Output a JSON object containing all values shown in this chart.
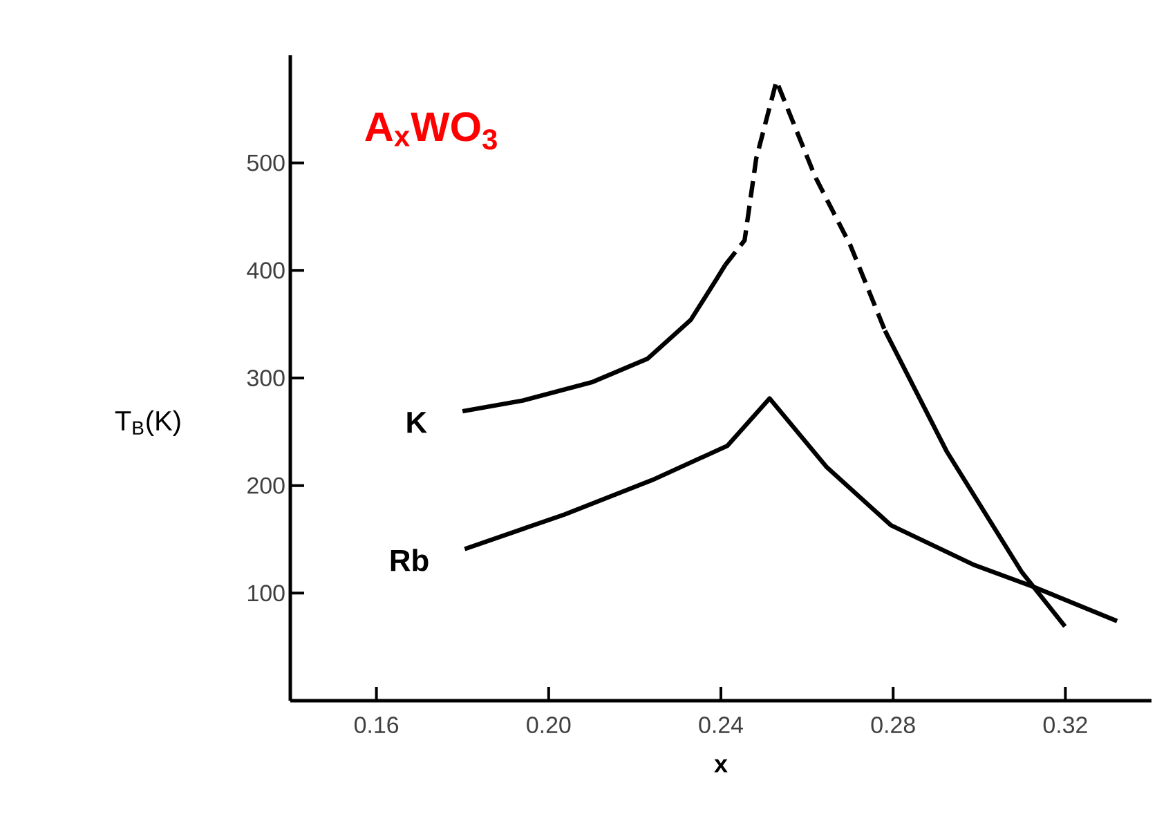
{
  "chart_data": {
    "type": "line",
    "title": "A$_{x}$WO$_{3}$",
    "xlabel": "x",
    "ylabel": "T$_{B}$(K)",
    "xlim": [
      0.14,
      0.34
    ],
    "ylim": [
      0,
      600
    ],
    "xticks": [
      0.16,
      {
        "value": 0.2,
        "label": "0.20"
      },
      0.24,
      0.28,
      0.32
    ],
    "yticks": [
      100,
      200,
      300,
      400,
      500
    ],
    "line_style": "solid",
    "marker": "none",
    "grid": false,
    "series": [
      {
        "name": "K",
        "color": "#000000",
        "x": [
          0.18,
          0.194,
          0.21,
          0.223,
          0.233,
          0.239,
          0.241
        ],
        "values": [
          269,
          279,
          296,
          318,
          354,
          392,
          405
        ]
      },
      {
        "color": "#000000",
        "line_style": "dashed",
        "x": [
          0.241,
          0.2455,
          0.2482,
          0.2529,
          0.2619,
          0.2701,
          0.2781
        ],
        "values": [
          405,
          428,
          504,
          576,
          487,
          423,
          344
        ]
      },
      {
        "color": "#000000",
        "x": [
          0.2781,
          0.2924,
          0.3098,
          0.3199
        ],
        "values": [
          344,
          232,
          120,
          69
        ]
      },
      {
        "name": "Rb",
        "color": "#000000",
        "x": [
          0.1805,
          0.2036,
          0.224,
          0.2415,
          0.2513,
          0.2646,
          0.2795,
          0.2989,
          0.3125,
          0.332
        ],
        "values": [
          141,
          173,
          205,
          237,
          281,
          217,
          163,
          126,
          106,
          74
        ]
      }
    ]
  }
}
